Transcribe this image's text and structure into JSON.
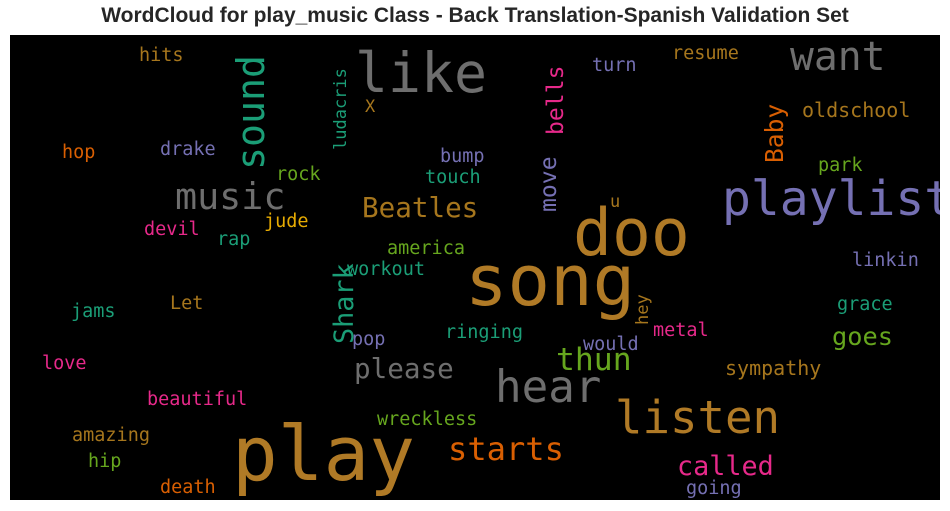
{
  "chart_data": {
    "type": "wordcloud",
    "title": "WordCloud for play_music Class - Back Translation-Spanish Validation Set",
    "background": "#000000",
    "words": [
      {
        "text": "play",
        "color": "#b07a26",
        "weight": 100
      },
      {
        "text": "song",
        "color": "#b07a26",
        "weight": 93
      },
      {
        "text": "doo",
        "color": "#b07a26",
        "weight": 85
      },
      {
        "text": "like",
        "color": "#6e6e6e",
        "weight": 72
      },
      {
        "text": "playlist",
        "color": "#7570b3",
        "weight": 63
      },
      {
        "text": "listen",
        "color": "#b07a26",
        "weight": 60
      },
      {
        "text": "hear",
        "color": "#6e6e6e",
        "weight": 58
      },
      {
        "text": "want",
        "color": "#6e6e6e",
        "weight": 52
      },
      {
        "text": "sound",
        "color": "#1b9e77",
        "weight": 50
      },
      {
        "text": "music",
        "color": "#6e6e6e",
        "weight": 48
      },
      {
        "text": "starts",
        "color": "#d95f02",
        "weight": 42
      },
      {
        "text": "thun",
        "color": "#66a61e",
        "weight": 41
      },
      {
        "text": "Beatles",
        "color": "#a6761d",
        "weight": 36
      },
      {
        "text": "please",
        "color": "#6e6e6e",
        "weight": 36
      },
      {
        "text": "Shark",
        "color": "#1b9e77",
        "weight": 35
      },
      {
        "text": "called",
        "color": "#e7298a",
        "weight": 35
      },
      {
        "text": "goes",
        "color": "#66a61e",
        "weight": 33
      },
      {
        "text": "Baby",
        "color": "#d95f02",
        "weight": 32
      },
      {
        "text": "move",
        "color": "#7570b3",
        "weight": 30
      },
      {
        "text": "bells",
        "color": "#e7298a",
        "weight": 30
      },
      {
        "text": "oldschool",
        "color": "#a6761d",
        "weight": 26
      },
      {
        "text": "sympathy",
        "color": "#a6761d",
        "weight": 26
      },
      {
        "text": "resume",
        "color": "#a6761d",
        "weight": 24
      },
      {
        "text": "turn",
        "color": "#7570b3",
        "weight": 24
      },
      {
        "text": "hits",
        "color": "#a6761d",
        "weight": 24
      },
      {
        "text": "hop",
        "color": "#d95f02",
        "weight": 24
      },
      {
        "text": "drake",
        "color": "#7570b3",
        "weight": 24
      },
      {
        "text": "ludacris",
        "color": "#1b9e77",
        "weight": 22
      },
      {
        "text": "X",
        "color": "#a6761d",
        "weight": 22
      },
      {
        "text": "rock",
        "color": "#66a61e",
        "weight": 24
      },
      {
        "text": "bump",
        "color": "#7570b3",
        "weight": 24
      },
      {
        "text": "touch",
        "color": "#1b9e77",
        "weight": 24
      },
      {
        "text": "park",
        "color": "#66a61e",
        "weight": 24
      },
      {
        "text": "u",
        "color": "#a6761d",
        "weight": 22
      },
      {
        "text": "devil",
        "color": "#e7298a",
        "weight": 24
      },
      {
        "text": "jude",
        "color": "#e6ab02",
        "weight": 24
      },
      {
        "text": "rap",
        "color": "#1b9e77",
        "weight": 24
      },
      {
        "text": "america",
        "color": "#66a61e",
        "weight": 24
      },
      {
        "text": "workout",
        "color": "#1b9e77",
        "weight": 24
      },
      {
        "text": "hey",
        "color": "#a6761d",
        "weight": 22
      },
      {
        "text": "linkin",
        "color": "#7570b3",
        "weight": 24
      },
      {
        "text": "Let",
        "color": "#a6761d",
        "weight": 24
      },
      {
        "text": "grace",
        "color": "#1b9e77",
        "weight": 24
      },
      {
        "text": "jams",
        "color": "#1b9e77",
        "weight": 24
      },
      {
        "text": "pop",
        "color": "#7570b3",
        "weight": 24
      },
      {
        "text": "ringing",
        "color": "#1b9e77",
        "weight": 24
      },
      {
        "text": "metal",
        "color": "#e7298a",
        "weight": 24
      },
      {
        "text": "would",
        "color": "#7570b3",
        "weight": 24
      },
      {
        "text": "love",
        "color": "#e7298a",
        "weight": 24
      },
      {
        "text": "beautiful",
        "color": "#e7298a",
        "weight": 24
      },
      {
        "text": "wreckless",
        "color": "#66a61e",
        "weight": 24
      },
      {
        "text": "amazing",
        "color": "#a6761d",
        "weight": 24
      },
      {
        "text": "hip",
        "color": "#66a61e",
        "weight": 24
      },
      {
        "text": "death",
        "color": "#d95f02",
        "weight": 24
      },
      {
        "text": "going",
        "color": "#7570b3",
        "weight": 24
      }
    ]
  }
}
